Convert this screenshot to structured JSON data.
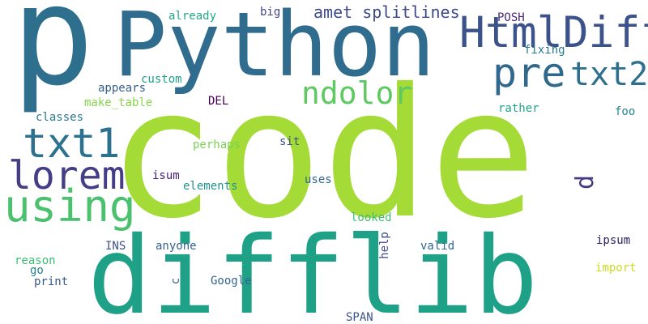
{
  "words": [
    {
      "id": "p",
      "text": "p",
      "color": "#2e6f8e"
    },
    {
      "id": "python",
      "text": "Python",
      "color": "#2f6c8e"
    },
    {
      "id": "code",
      "text": "code",
      "color": "#a5db36"
    },
    {
      "id": "difflib",
      "text": "difflib",
      "color": "#1fa188"
    },
    {
      "id": "htmldiff",
      "text": "HtmlDiff",
      "color": "#3b528b"
    },
    {
      "id": "pre",
      "text": "pre",
      "color": "#31688e"
    },
    {
      "id": "txt2",
      "text": "txt2",
      "color": "#2e6f8e"
    },
    {
      "id": "txt1",
      "text": "txt1",
      "color": "#2c728e"
    },
    {
      "id": "lorem",
      "text": "lorem",
      "color": "#433e85"
    },
    {
      "id": "using",
      "text": "using",
      "color": "#4ac16d"
    },
    {
      "id": "ndolor",
      "text": "ndolor",
      "color": "#5ec962"
    },
    {
      "id": "amet-splitlines",
      "text": "amet splitlines",
      "color": "#3e4989"
    },
    {
      "id": "d",
      "text": "d",
      "color": "#443983"
    },
    {
      "id": "already",
      "text": "already",
      "color": "#22a884"
    },
    {
      "id": "big",
      "text": "big",
      "color": "#414487"
    },
    {
      "id": "posh",
      "text": "POSH",
      "color": "#482878"
    },
    {
      "id": "fixing",
      "text": "fixing",
      "color": "#2a788e"
    },
    {
      "id": "custom",
      "text": "custom",
      "color": "#1f9e89"
    },
    {
      "id": "appears",
      "text": "appears",
      "color": "#35608d"
    },
    {
      "id": "make-table",
      "text": "make_table",
      "color": "#86d549"
    },
    {
      "id": "del",
      "text": "DEL",
      "color": "#440154"
    },
    {
      "id": "classes",
      "text": "classes",
      "color": "#2a788e"
    },
    {
      "id": "rather",
      "text": "rather",
      "color": "#20a486"
    },
    {
      "id": "foo",
      "text": "foo",
      "color": "#25848e"
    },
    {
      "id": "perhaps",
      "text": "perhaps",
      "color": "#7ad151"
    },
    {
      "id": "sit",
      "text": "sit",
      "color": "#3b528b"
    },
    {
      "id": "isum",
      "text": "isum",
      "color": "#482173"
    },
    {
      "id": "uses",
      "text": "uses",
      "color": "#33638d"
    },
    {
      "id": "elements",
      "text": "elements",
      "color": "#20938c"
    },
    {
      "id": "looked",
      "text": "looked",
      "color": "#3fbc73"
    },
    {
      "id": "ins",
      "text": "INS",
      "color": "#3b528b"
    },
    {
      "id": "anyone",
      "text": "anyone",
      "color": "#355f8d"
    },
    {
      "id": "help",
      "text": "help",
      "color": "#3e4a89"
    },
    {
      "id": "valid",
      "text": "valid",
      "color": "#31688e"
    },
    {
      "id": "ipsum",
      "text": "ipsum",
      "color": "#2d1e63"
    },
    {
      "id": "reason",
      "text": "reason",
      "color": "#3dbc74"
    },
    {
      "id": "go",
      "text": "go",
      "color": "#277f8e"
    },
    {
      "id": "import",
      "text": "import",
      "color": "#c8e020"
    },
    {
      "id": "print",
      "text": "print",
      "color": "#38588c"
    },
    {
      "id": "c",
      "text": "c",
      "color": "#34618d"
    },
    {
      "id": "google",
      "text": "Google",
      "color": "#33638d"
    },
    {
      "id": "span",
      "text": "SPAN",
      "color": "#3b528b"
    }
  ]
}
